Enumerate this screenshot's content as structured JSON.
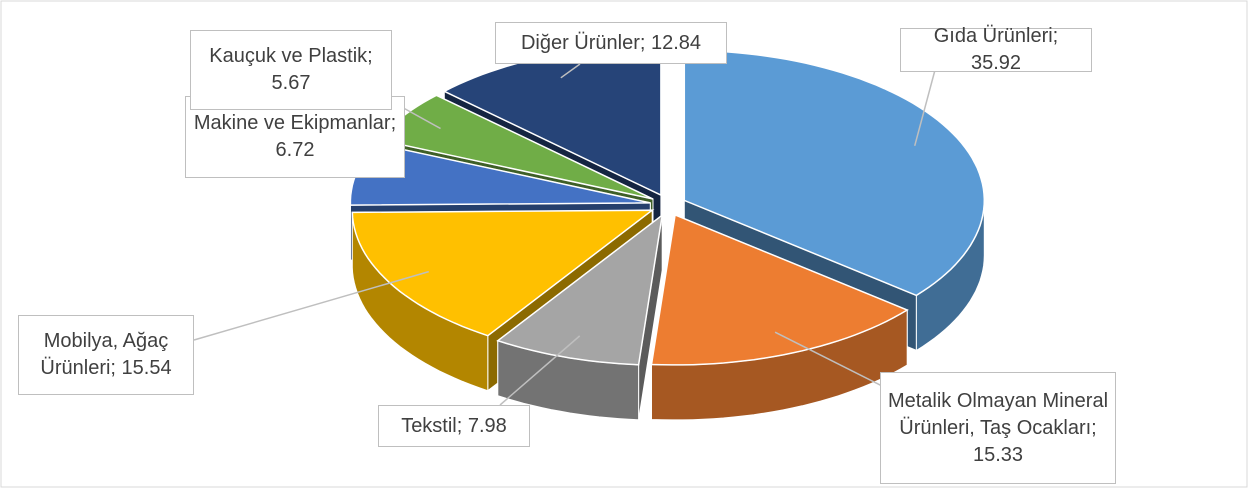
{
  "chart_data": {
    "type": "pie3d",
    "values": [
      35.92,
      15.33,
      7.98,
      15.54,
      6.72,
      5.67,
      12.84
    ],
    "value_labels": [
      "Gıda Ürünleri; 35.92",
      "Metalik Olmayan Mineral Ürünleri, Taş Ocakları; 15.33",
      "Tekstil; 7.98",
      "Mobilya, Ağaç Ürünleri; 15.54",
      "Makine ve Ekipmanlar; 6.72",
      "Kauçuk ve Plastik; 5.67",
      "Diğer Ürünler; 12.84"
    ],
    "colors": [
      "#5b9bd5",
      "#ed7d31",
      "#a5a5a5",
      "#ffc000",
      "#4472c4",
      "#70ad47",
      "#264478"
    ]
  }
}
